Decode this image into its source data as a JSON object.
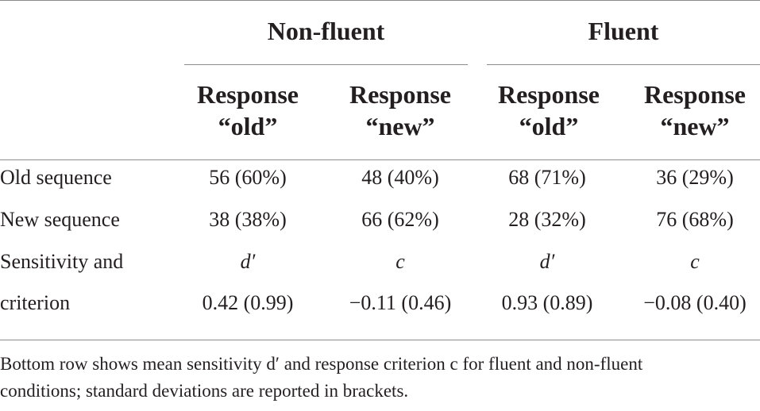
{
  "table": {
    "groups": [
      "Non-fluent",
      "Fluent"
    ],
    "column_headers": [
      [
        "Response",
        "“old”"
      ],
      [
        "Response",
        "“new”"
      ],
      [
        "Response",
        "“old”"
      ],
      [
        "Response",
        "“new”"
      ]
    ],
    "rows": [
      {
        "label": "Old sequence",
        "cells": [
          "56 (60%)",
          "48 (40%)",
          "68 (71%)",
          "36 (29%)"
        ]
      },
      {
        "label": "New sequence",
        "cells": [
          "38 (38%)",
          "66 (62%)",
          "28 (32%)",
          "76 (68%)"
        ]
      },
      {
        "label": "Sensitivity and",
        "cells": [
          "d′",
          "c",
          "d′",
          "c"
        ]
      },
      {
        "label": "criterion",
        "cells": [
          "0.42 (0.99)",
          "−0.11 (0.46)",
          "0.93 (0.89)",
          "−0.08 (0.40)"
        ]
      }
    ]
  },
  "footnote": {
    "line1": "Bottom row shows mean sensitivity d′ and response criterion c for fluent and non-fluent",
    "line2": "conditions; standard deviations are reported in brackets."
  }
}
